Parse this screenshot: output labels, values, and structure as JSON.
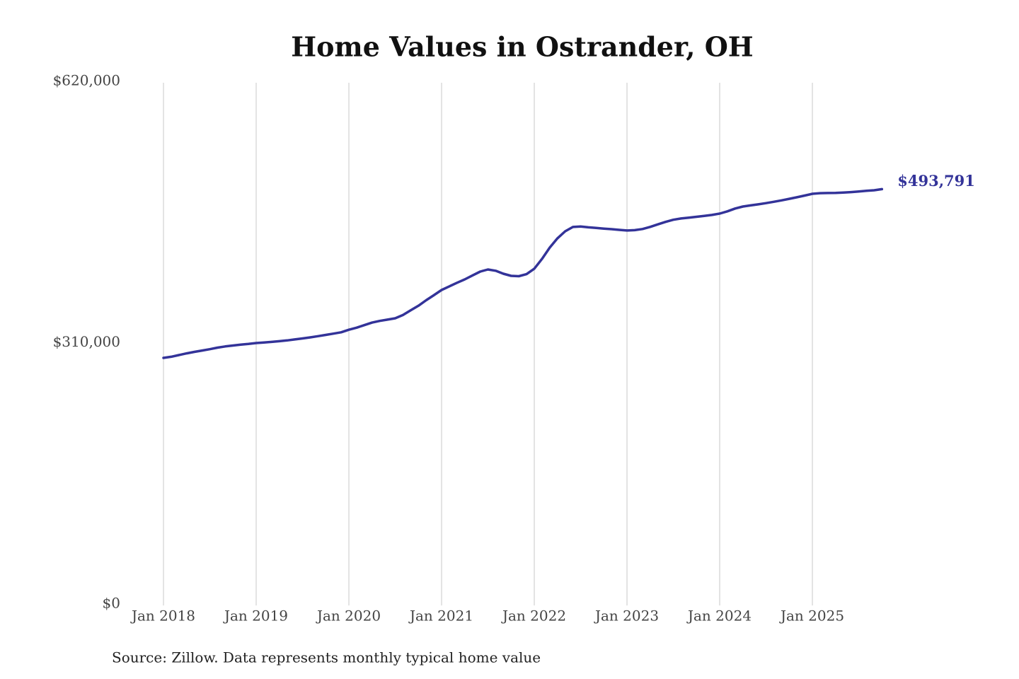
{
  "chart_data": {
    "type": "line",
    "title": "Home Values in Ostrander, OH",
    "source": "Source: Zillow. Data represents monthly typical home value",
    "color": "#333399",
    "x": [
      "2018-01",
      "2018-02",
      "2018-03",
      "2018-04",
      "2018-05",
      "2018-06",
      "2018-07",
      "2018-08",
      "2018-09",
      "2018-10",
      "2018-11",
      "2018-12",
      "2019-01",
      "2019-02",
      "2019-03",
      "2019-04",
      "2019-05",
      "2019-06",
      "2019-07",
      "2019-08",
      "2019-09",
      "2019-10",
      "2019-11",
      "2019-12",
      "2020-01",
      "2020-02",
      "2020-03",
      "2020-04",
      "2020-05",
      "2020-06",
      "2020-07",
      "2020-08",
      "2020-09",
      "2020-10",
      "2020-11",
      "2020-12",
      "2021-01",
      "2021-02",
      "2021-03",
      "2021-04",
      "2021-05",
      "2021-06",
      "2021-07",
      "2021-08",
      "2021-09",
      "2021-10",
      "2021-11",
      "2021-12",
      "2022-01",
      "2022-02",
      "2022-03",
      "2022-04",
      "2022-05",
      "2022-06",
      "2022-07",
      "2022-08",
      "2022-09",
      "2022-10",
      "2022-11",
      "2022-12",
      "2023-01",
      "2023-02",
      "2023-03",
      "2023-04",
      "2023-05",
      "2023-06",
      "2023-07",
      "2023-08",
      "2023-09",
      "2023-10",
      "2023-11",
      "2023-12",
      "2024-01",
      "2024-02",
      "2024-03",
      "2024-04",
      "2024-05",
      "2024-06",
      "2024-07",
      "2024-08",
      "2024-09",
      "2024-10",
      "2024-11",
      "2024-12",
      "2025-01",
      "2025-02",
      "2025-03",
      "2025-04",
      "2025-05",
      "2025-06",
      "2025-07",
      "2025-08",
      "2025-09",
      "2025-10"
    ],
    "values": [
      293600,
      295000,
      297000,
      299000,
      300800,
      302400,
      304000,
      305800,
      307200,
      308300,
      309300,
      310200,
      311300,
      311900,
      312600,
      313400,
      314400,
      315500,
      316700,
      318000,
      319400,
      320900,
      322400,
      324000,
      327000,
      329500,
      332500,
      335500,
      337500,
      339000,
      340600,
      344500,
      350000,
      355500,
      362000,
      368000,
      374200,
      378500,
      382700,
      386800,
      391500,
      396000,
      398500,
      397000,
      393500,
      391000,
      390500,
      393000,
      399400,
      411000,
      424500,
      435500,
      443800,
      448900,
      449500,
      448500,
      447800,
      447000,
      446300,
      445500,
      444700,
      445200,
      446500,
      449000,
      452000,
      455000,
      457500,
      459000,
      460000,
      461000,
      462000,
      463200,
      464800,
      467500,
      470800,
      473200,
      474500,
      475800,
      477200,
      478800,
      480500,
      482300,
      484200,
      486200,
      488300,
      489000,
      489200,
      489400,
      489800,
      490300,
      491000,
      491800,
      492500,
      493791
    ],
    "value_labels": [
      null,
      null,
      null,
      null,
      null,
      null,
      null,
      null,
      null,
      null,
      null,
      null,
      null,
      null,
      null,
      null,
      null,
      null,
      null,
      null,
      null,
      null,
      null,
      null,
      null,
      null,
      null,
      null,
      null,
      null,
      null,
      null,
      null,
      null,
      null,
      null,
      null,
      null,
      null,
      null,
      null,
      null,
      null,
      null,
      null,
      null,
      null,
      null,
      null,
      null,
      null,
      null,
      null,
      null,
      null,
      null,
      null,
      null,
      null,
      null,
      null,
      null,
      null,
      null,
      null,
      null,
      null,
      null,
      null,
      null,
      null,
      null,
      null,
      null,
      null,
      null,
      null,
      null,
      null,
      null,
      null,
      null,
      null,
      null,
      null,
      null,
      null,
      null,
      null,
      null,
      null,
      null,
      null,
      "$493,791"
    ],
    "xticks": [
      {
        "value": "2018-01",
        "label": "Jan 2018"
      },
      {
        "value": "2019-01",
        "label": "Jan 2019"
      },
      {
        "value": "2020-01",
        "label": "Jan 2020"
      },
      {
        "value": "2021-01",
        "label": "Jan 2021"
      },
      {
        "value": "2022-01",
        "label": "Jan 2022"
      },
      {
        "value": "2023-01",
        "label": "Jan 2023"
      },
      {
        "value": "2024-01",
        "label": "Jan 2024"
      },
      {
        "value": "2025-01",
        "label": "Jan 2025"
      }
    ],
    "ylim": [
      0,
      620000
    ],
    "yticks": [
      {
        "value": 0,
        "label": "$0"
      },
      {
        "value": 310000,
        "label": "$310,000"
      },
      {
        "value": 620000,
        "label": "$620,000"
      }
    ],
    "grid": true
  }
}
